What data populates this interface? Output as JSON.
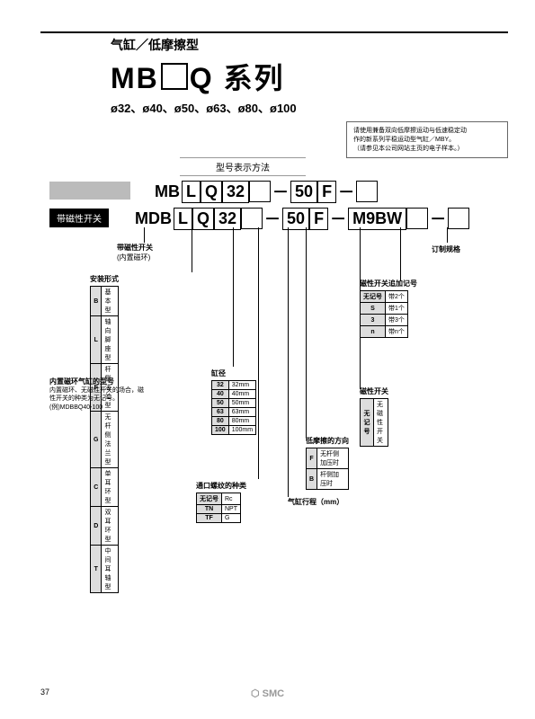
{
  "header": {
    "sub1": "气缸／低摩擦型",
    "title_p1": "MB",
    "title_p2": "Q",
    "title_suffix": "系列",
    "sizes": "ø32、ø40、ø50、ø63、ø80、ø100"
  },
  "notebox": {
    "l1": "请使用兼备双向低摩擦运动与低速稳定动",
    "l2": "作的新系列平稳运动型气缸／MBY。",
    "l3": "（请参见本公司网站主页的电子样本。）"
  },
  "section_label": "型号表示方法",
  "coderow1": {
    "p1": "MB",
    "s1": "L",
    "s2": "Q",
    "s3": "32",
    "dash1": "50",
    "s4": "F"
  },
  "coderow2": {
    "p1": "MDB",
    "s1": "L",
    "s2": "Q",
    "s3": "32",
    "dash1": "50",
    "s4": "F",
    "s5": "M9BW"
  },
  "mag_label": "带磁性开关",
  "labels": {
    "mag_switch": "带磁性开关",
    "mag_sub": "(内置磁环)",
    "custom": "订制规格",
    "mount": "安装形式",
    "switch_add": "磁性开关追加记号",
    "bore": "缸径",
    "switch": "磁性开关",
    "friction": "低摩擦的方向",
    "stroke": "气缸行程（mm）",
    "thread": "通口螺纹的种类",
    "builtin": "内置磁环气缸的型号"
  },
  "mount_tbl": [
    [
      "B",
      "基本型"
    ],
    [
      "L",
      "轴向脚座型"
    ],
    [
      "F",
      "杆侧法兰型"
    ],
    [
      "G",
      "无杆侧法兰型"
    ],
    [
      "C",
      "单耳环型"
    ],
    [
      "D",
      "双耳环型"
    ],
    [
      "T",
      "中间耳轴型"
    ]
  ],
  "switch_add_tbl": [
    [
      "无记号",
      "带2个"
    ],
    [
      "S",
      "带1个"
    ],
    [
      "3",
      "带3个"
    ],
    [
      "n",
      "带n个"
    ]
  ],
  "bore_tbl": [
    [
      "32",
      "32mm"
    ],
    [
      "40",
      "40mm"
    ],
    [
      "50",
      "50mm"
    ],
    [
      "63",
      "63mm"
    ],
    [
      "80",
      "80mm"
    ],
    [
      "100",
      "100mm"
    ]
  ],
  "switch_tbl": [
    [
      "无记号",
      "无磁性开关"
    ]
  ],
  "friction_tbl": [
    [
      "F",
      "无杆侧加压时"
    ],
    [
      "B",
      "杆侧加压时"
    ]
  ],
  "thread_tbl": [
    [
      "无记号",
      "Rc"
    ],
    [
      "TN",
      "NPT"
    ],
    [
      "TF",
      "G"
    ]
  ],
  "builtin_note": {
    "l1": "内置磁环、无磁性开关的场合，磁",
    "l2": "性开关的种类为无记号。",
    "l3": "(例)MDBBQ40-100"
  },
  "page_num": "37",
  "logo": "SMC",
  "colors": {
    "black": "#000000",
    "grey": "#bbbbbb",
    "lightgrey": "#dddddd"
  }
}
